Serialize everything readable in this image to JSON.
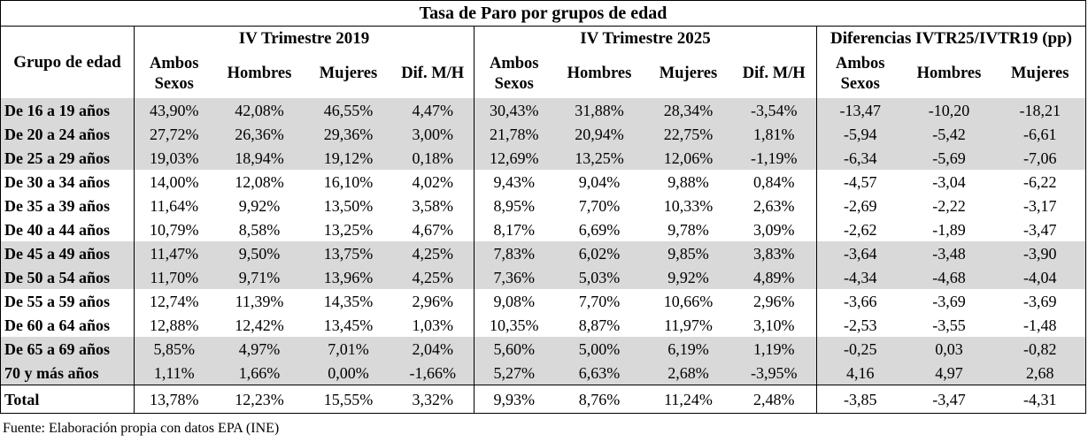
{
  "title": "Tasa de Paro por grupos de edad",
  "group_header": "Grupo de edad",
  "periods": [
    "IV Trimestre 2019",
    "IV Trimestre 2025",
    "Diferencias IVTR25/IVTR19 (pp)"
  ],
  "sub_headers_a": [
    "Ambos Sexos",
    "Hombres",
    "Mujeres",
    "Dif. M/H"
  ],
  "sub_headers_b": [
    "Ambos Sexos",
    "Hombres",
    "Mujeres",
    "Dif. M/H"
  ],
  "sub_headers_c": [
    "Ambos Sexos",
    "Hombres",
    "Mujeres"
  ],
  "rows": [
    {
      "label": "De 16 a 19 años",
      "shade": true,
      "v": [
        "43,90%",
        "42,08%",
        "46,55%",
        "4,47%",
        "30,43%",
        "31,88%",
        "28,34%",
        "-3,54%",
        "-13,47",
        "-10,20",
        "-18,21"
      ]
    },
    {
      "label": "De 20 a 24 años",
      "shade": true,
      "v": [
        "27,72%",
        "26,36%",
        "29,36%",
        "3,00%",
        "21,78%",
        "20,94%",
        "22,75%",
        "1,81%",
        "-5,94",
        "-5,42",
        "-6,61"
      ]
    },
    {
      "label": "De 25 a 29 años",
      "shade": true,
      "v": [
        "19,03%",
        "18,94%",
        "19,12%",
        "0,18%",
        "12,69%",
        "13,25%",
        "12,06%",
        "-1,19%",
        "-6,34",
        "-5,69",
        "-7,06"
      ]
    },
    {
      "label": "De 30 a 34 años",
      "shade": false,
      "v": [
        "14,00%",
        "12,08%",
        "16,10%",
        "4,02%",
        "9,43%",
        "9,04%",
        "9,88%",
        "0,84%",
        "-4,57",
        "-3,04",
        "-6,22"
      ]
    },
    {
      "label": "De 35 a 39 años",
      "shade": false,
      "v": [
        "11,64%",
        "9,92%",
        "13,50%",
        "3,58%",
        "8,95%",
        "7,70%",
        "10,33%",
        "2,63%",
        "-2,69",
        "-2,22",
        "-3,17"
      ]
    },
    {
      "label": "De 40 a 44 años",
      "shade": false,
      "v": [
        "10,79%",
        "8,58%",
        "13,25%",
        "4,67%",
        "8,17%",
        "6,69%",
        "9,78%",
        "3,09%",
        "-2,62",
        "-1,89",
        "-3,47"
      ]
    },
    {
      "label": "De 45 a 49 años",
      "shade": true,
      "v": [
        "11,47%",
        "9,50%",
        "13,75%",
        "4,25%",
        "7,83%",
        "6,02%",
        "9,85%",
        "3,83%",
        "-3,64",
        "-3,48",
        "-3,90"
      ]
    },
    {
      "label": "De 50 a 54 años",
      "shade": true,
      "v": [
        "11,70%",
        "9,71%",
        "13,96%",
        "4,25%",
        "7,36%",
        "5,03%",
        "9,92%",
        "4,89%",
        "-4,34",
        "-4,68",
        "-4,04"
      ]
    },
    {
      "label": "De 55 a 59 años",
      "shade": false,
      "v": [
        "12,74%",
        "11,39%",
        "14,35%",
        "2,96%",
        "9,08%",
        "7,70%",
        "10,66%",
        "2,96%",
        "-3,66",
        "-3,69",
        "-3,69"
      ]
    },
    {
      "label": "De 60 a 64 años",
      "shade": false,
      "v": [
        "12,88%",
        "12,42%",
        "13,45%",
        "1,03%",
        "10,35%",
        "8,87%",
        "11,97%",
        "3,10%",
        "-2,53",
        "-3,55",
        "-1,48"
      ]
    },
    {
      "label": "De 65 a 69 años",
      "shade": true,
      "v": [
        "5,85%",
        "4,97%",
        "7,01%",
        "2,04%",
        "5,60%",
        "5,00%",
        "6,19%",
        "1,19%",
        "-0,25",
        "0,03",
        "-0,82"
      ]
    },
    {
      "label": "70 y más años",
      "shade": true,
      "v": [
        "1,11%",
        "1,66%",
        "0,00%",
        "-1,66%",
        "5,27%",
        "6,63%",
        "2,68%",
        "-3,95%",
        "4,16",
        "4,97",
        "2,68"
      ]
    }
  ],
  "total": {
    "label": "Total",
    "v": [
      "13,78%",
      "12,23%",
      "15,55%",
      "3,32%",
      "9,93%",
      "8,76%",
      "11,24%",
      "2,48%",
      "-3,85",
      "-3,47",
      "-4,31"
    ]
  },
  "source": "Fuente: Elaboración propia con datos EPA (INE)"
}
